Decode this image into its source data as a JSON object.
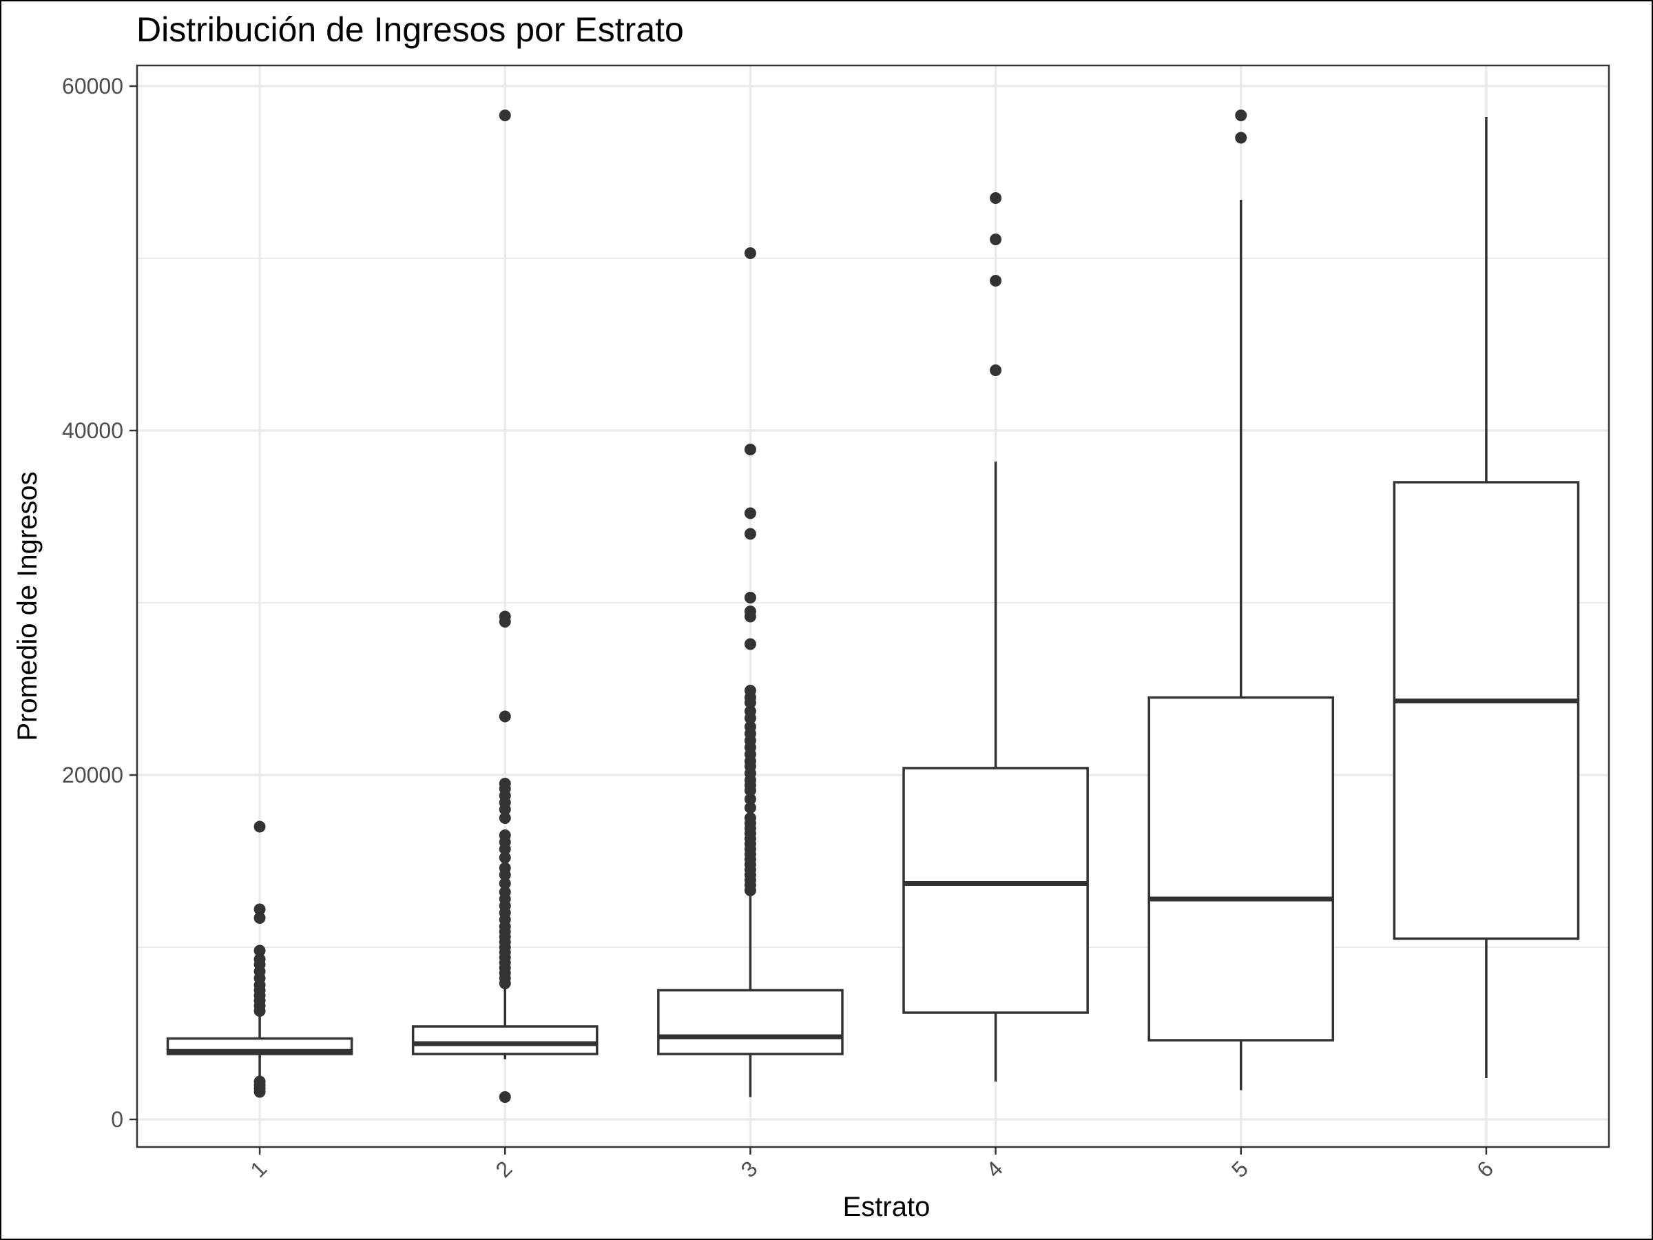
{
  "chart_data": {
    "type": "boxplot",
    "title": "Distribución de Ingresos por Estrato",
    "xlabel": "Estrato",
    "ylabel": "Promedio de Ingresos",
    "categories": [
      "1",
      "2",
      "3",
      "4",
      "5",
      "6"
    ],
    "y_ticks": [
      0,
      20000,
      40000,
      60000
    ],
    "y_tick_labels": [
      "0",
      "20000",
      "40000",
      "60000"
    ],
    "ylim": [
      -1500,
      61500
    ],
    "grid": true,
    "legend": "none",
    "colors": {
      "box_line": "#333333",
      "outlier": "#333333",
      "grid": "#ebebeb",
      "panel_border": "#333333"
    },
    "boxes": [
      {
        "category": "1",
        "whisker_low": 2300,
        "q1": 3800,
        "median": 3950,
        "q3": 4700,
        "whisker_high": 6200,
        "outliers": [
          1600,
          1800,
          2000,
          2200,
          6300,
          6600,
          6900,
          7200,
          7500,
          7800,
          8200,
          8600,
          9000,
          9300,
          9800,
          11700,
          12200,
          17000
        ]
      },
      {
        "category": "2",
        "whisker_low": 3500,
        "q1": 3800,
        "median": 4400,
        "q3": 5400,
        "whisker_high": 7600,
        "outliers": [
          1300,
          7900,
          8200,
          8500,
          8800,
          9100,
          9400,
          9700,
          10000,
          10300,
          10600,
          10900,
          11200,
          11600,
          12000,
          12400,
          12800,
          13200,
          13700,
          14200,
          14600,
          15200,
          15700,
          16100,
          16500,
          17500,
          18000,
          18400,
          18800,
          19200,
          19500,
          23400,
          28900,
          29200,
          58300
        ]
      },
      {
        "category": "3",
        "whisker_low": 1300,
        "q1": 3800,
        "median": 4800,
        "q3": 7500,
        "whisker_high": 13100,
        "outliers": [
          13300,
          13600,
          13900,
          14200,
          14500,
          14800,
          15100,
          15400,
          15700,
          16000,
          16300,
          16600,
          16900,
          17200,
          17500,
          18100,
          18600,
          19100,
          19400,
          19700,
          20100,
          20500,
          20800,
          21200,
          21600,
          22000,
          22400,
          22800,
          23300,
          23700,
          24200,
          24500,
          24900,
          27600,
          29200,
          29500,
          30300,
          34000,
          35200,
          38900,
          50300
        ]
      },
      {
        "category": "4",
        "whisker_low": 2200,
        "q1": 6200,
        "median": 13700,
        "q3": 20400,
        "whisker_high": 38200,
        "outliers": [
          43500,
          48700,
          51100,
          53500
        ]
      },
      {
        "category": "5",
        "whisker_low": 1700,
        "q1": 4600,
        "median": 12800,
        "q3": 24500,
        "whisker_high": 53400,
        "outliers": [
          57000,
          58300
        ]
      },
      {
        "category": "6",
        "whisker_low": 2400,
        "q1": 10500,
        "median": 24300,
        "q3": 37000,
        "whisker_high": 58200,
        "outliers": []
      }
    ]
  }
}
